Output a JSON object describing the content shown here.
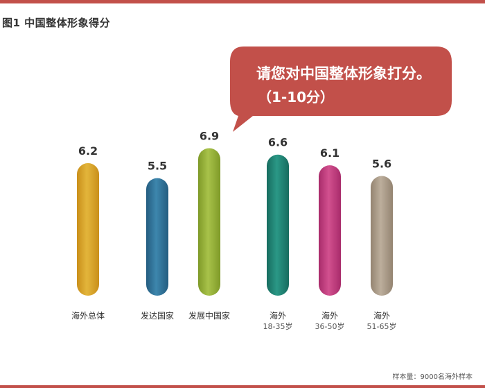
{
  "figure_title": "图1 中国整体形象得分",
  "callout": {
    "line1": "请您对中国整体形象打分。",
    "line2": "（1-10分）"
  },
  "footnote": "样本量：9000名海外样本",
  "colors": {
    "frame": "#c2504a",
    "callout_bg": "#c2504a"
  },
  "chart_data": {
    "type": "bar",
    "title": "",
    "xlabel": "",
    "ylabel": "",
    "ylim": [
      0,
      10
    ],
    "categories": [
      {
        "label": "海外总体",
        "sub": ""
      },
      {
        "label": "发达国家",
        "sub": ""
      },
      {
        "label": "发展中国家",
        "sub": ""
      },
      {
        "label": "海外",
        "sub": "18-35岁"
      },
      {
        "label": "海外",
        "sub": "36-50岁"
      },
      {
        "label": "海外",
        "sub": "51-65岁"
      }
    ],
    "values": [
      6.2,
      5.5,
      6.9,
      6.6,
      6.1,
      5.6
    ],
    "value_labels": [
      "6.2",
      "5.5",
      "6.9",
      "6.6",
      "6.1",
      "5.6"
    ],
    "bar_colors": [
      [
        "#e3b53b",
        "#c98f1a"
      ],
      [
        "#3d86ad",
        "#245d80"
      ],
      [
        "#a8c24a",
        "#7f9a28"
      ],
      [
        "#2a9886",
        "#176c5f"
      ],
      [
        "#d2508f",
        "#a82b6a"
      ],
      [
        "#bcae9c",
        "#948471"
      ]
    ]
  }
}
